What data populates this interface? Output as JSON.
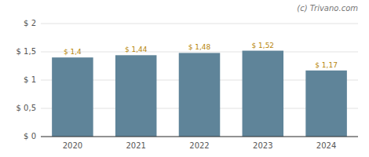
{
  "chart_data": {
    "type": "bar",
    "categories": [
      "2020",
      "2021",
      "2022",
      "2023",
      "2024"
    ],
    "values": [
      1.4,
      1.44,
      1.48,
      1.52,
      1.17
    ],
    "value_labels": [
      "$ 1,4",
      "$ 1,44",
      "$ 1,48",
      "$ 1,52",
      "$ 1,17"
    ],
    "data_labels": true,
    "color": "#5f8499",
    "ylim": [
      0,
      2.0
    ],
    "yticks": [
      {
        "value": 0,
        "label": "$ 0"
      },
      {
        "value": 0.5,
        "label": "$ 0,5"
      },
      {
        "value": 1.0,
        "label": "$ 1"
      },
      {
        "value": 1.5,
        "label": "$ 1,5"
      },
      {
        "value": 2.0,
        "label": "$ 2"
      }
    ],
    "grid": true,
    "annotations": [
      "(c) Trivano.com"
    ]
  }
}
